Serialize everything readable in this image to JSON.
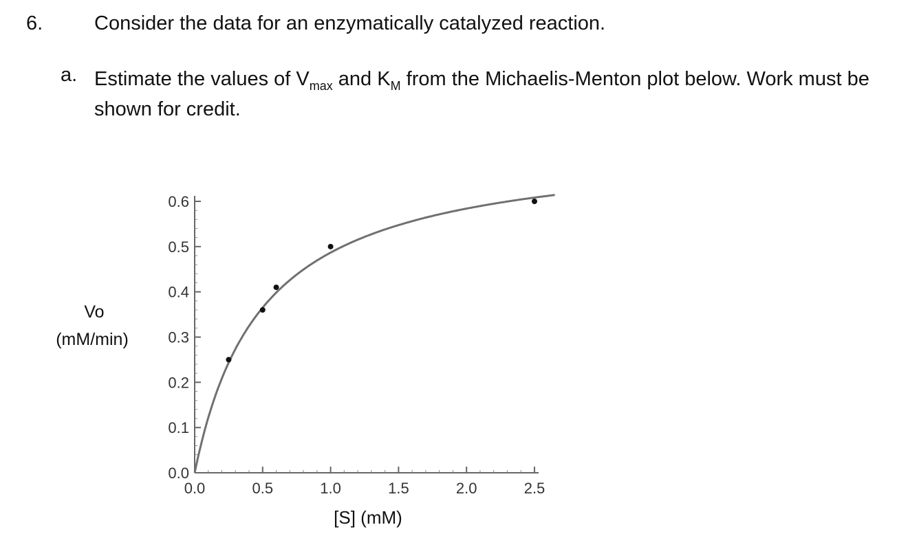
{
  "question": {
    "number": "6.",
    "text": "Consider the data for an enzymatically catalyzed reaction."
  },
  "part_a": {
    "letter": "a.",
    "text_1": "Estimate the values of V",
    "sub_vmax": "max",
    "text_2": " and K",
    "sub_km": "M",
    "text_3": " from the Michaelis-Menton plot below.  Work must be shown for credit."
  },
  "chart_data": {
    "type": "scatter",
    "xlabel": "[S] (mM)",
    "ylabel_line1": "Vo",
    "ylabel_line2": "(mM/min)",
    "xlim": [
      0,
      2.5
    ],
    "ylim": [
      0,
      0.6
    ],
    "x_ticks": [
      "0.0",
      "0.5",
      "1.0",
      "1.5",
      "2.0",
      "2.5"
    ],
    "y_ticks": [
      "0.0",
      "0.1",
      "0.2",
      "0.3",
      "0.4",
      "0.5",
      "0.6"
    ],
    "series": [
      {
        "points": [
          {
            "x": 0.25,
            "y": 0.25
          },
          {
            "x": 0.5,
            "y": 0.36
          },
          {
            "x": 0.6,
            "y": 0.41
          },
          {
            "x": 1.0,
            "y": 0.5
          },
          {
            "x": 2.5,
            "y": 0.6
          }
        ]
      }
    ],
    "fit_curve": {
      "model": "michaelis-menten",
      "vmax": 0.73,
      "km": 0.5,
      "x_range": [
        0,
        2.65
      ]
    },
    "grid": false
  }
}
